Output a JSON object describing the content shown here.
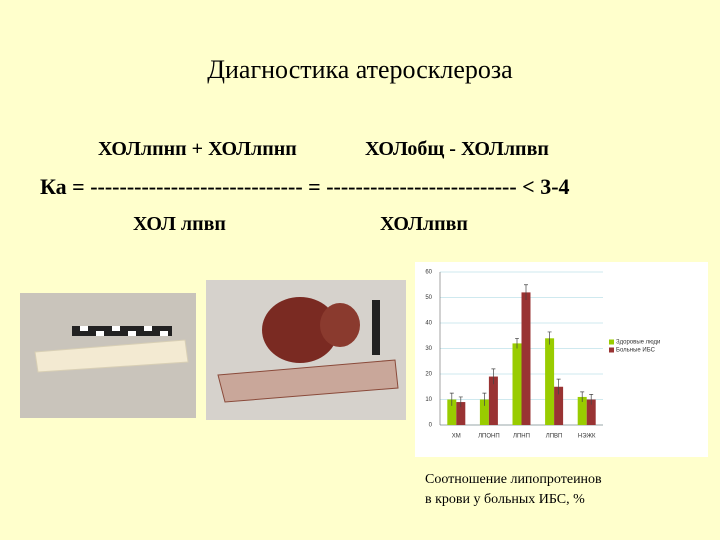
{
  "title": "Диагностика атеросклероза",
  "formula": {
    "numerator_left": "ХОЛлпнп + ХОЛлпнп",
    "numerator_right": "ХОЛобщ - ХОЛлпвп",
    "main_line": "Ка = ----------------------------- = --------------------------  < 3-4",
    "denominator_left": "ХОЛ лпвп",
    "denominator_right": "ХОЛлпвп"
  },
  "caption": [
    "Соотношение липопротеинов",
    "в крови у больных ИБС, %"
  ],
  "chart_data": {
    "type": "bar",
    "categories": [
      "ХМ",
      "ЛПОНП",
      "ЛПНП",
      "ЛПВП",
      "НЭЖК"
    ],
    "series": [
      {
        "name": "Здоровые люди",
        "color": "#99cc00",
        "values": [
          10,
          10,
          32,
          34,
          11
        ],
        "errors": [
          2.5,
          2.5,
          2,
          2.5,
          2
        ]
      },
      {
        "name": "Больные ИБС",
        "color": "#993333",
        "values": [
          9,
          19,
          52,
          15,
          10
        ],
        "errors": [
          2,
          3,
          3,
          3,
          2
        ]
      }
    ],
    "ylim": [
      0,
      60
    ],
    "yticks": [
      0,
      10,
      20,
      30,
      40,
      50,
      60
    ],
    "grid": true,
    "legend": "right"
  }
}
